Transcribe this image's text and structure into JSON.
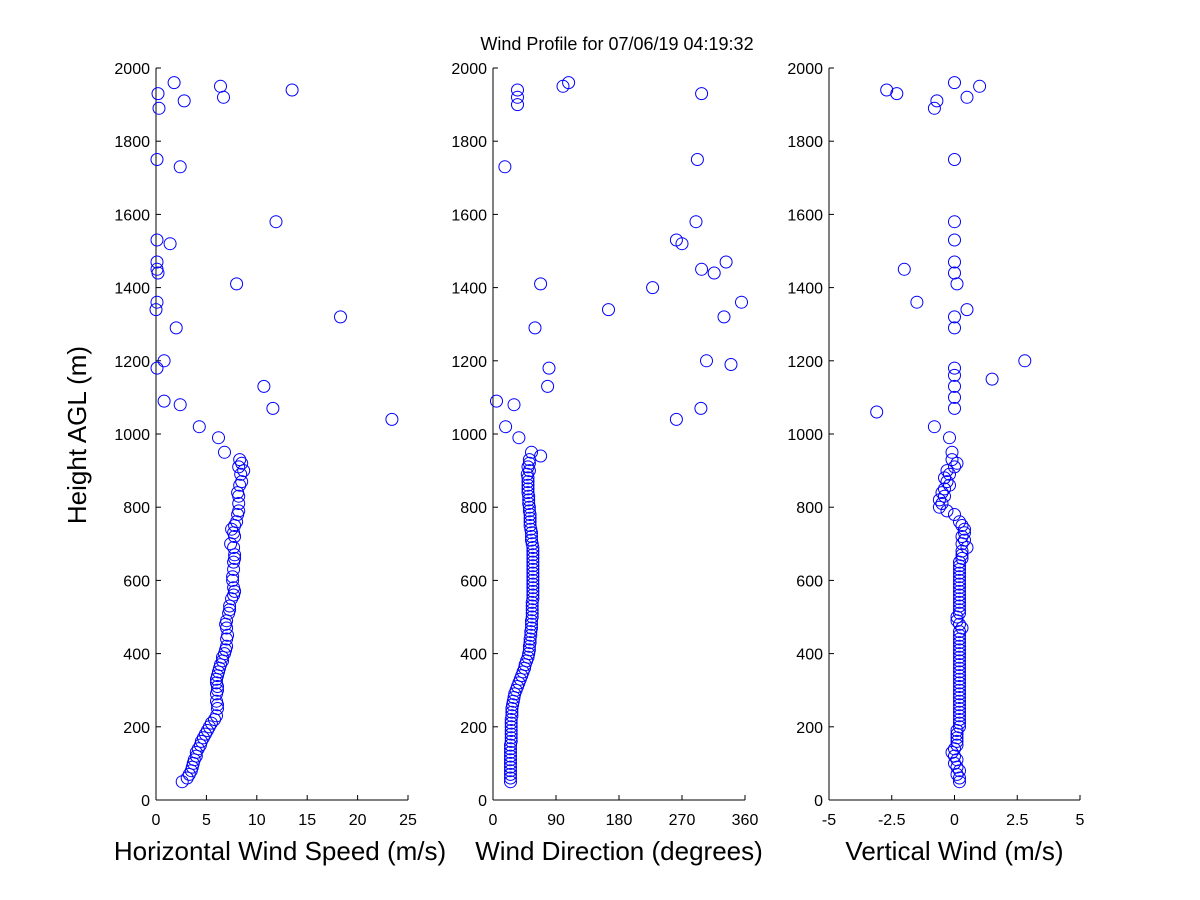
{
  "figure": {
    "title": "Wind Profile for  07/06/19 04:19:32",
    "ylabel": "Height AGL (m)"
  },
  "chart_data": [
    {
      "type": "scatter",
      "id": "speed",
      "xlabel": "Horizontal Wind Speed (m/s)",
      "ylabel": "Height AGL (m)",
      "xlim": [
        0,
        25
      ],
      "ylim": [
        0,
        2000
      ],
      "xticks": [
        "0",
        "5",
        "10",
        "15",
        "20",
        "25"
      ],
      "yticks": [
        "0",
        "200",
        "400",
        "600",
        "800",
        "1000",
        "1200",
        "1400",
        "1600",
        "1800",
        "2000"
      ],
      "marker_color": "#0000ff",
      "points": [
        [
          1.8,
          1960
        ],
        [
          0.2,
          1930
        ],
        [
          0.3,
          1890
        ],
        [
          2.8,
          1910
        ],
        [
          6.4,
          1950
        ],
        [
          6.7,
          1920
        ],
        [
          13.5,
          1940
        ],
        [
          0.1,
          1750
        ],
        [
          2.4,
          1730
        ],
        [
          11.9,
          1580
        ],
        [
          0.1,
          1530
        ],
        [
          1.4,
          1520
        ],
        [
          0.1,
          1470
        ],
        [
          0.1,
          1450
        ],
        [
          0.2,
          1440
        ],
        [
          8.0,
          1410
        ],
        [
          0.1,
          1360
        ],
        [
          0.0,
          1340
        ],
        [
          18.3,
          1320
        ],
        [
          2.0,
          1290
        ],
        [
          0.8,
          1200
        ],
        [
          0.1,
          1180
        ],
        [
          10.7,
          1130
        ],
        [
          0.8,
          1090
        ],
        [
          2.4,
          1080
        ],
        [
          11.6,
          1070
        ],
        [
          23.4,
          1040
        ],
        [
          4.3,
          1020
        ],
        [
          6.2,
          990
        ],
        [
          6.8,
          950
        ],
        [
          8.3,
          930
        ],
        [
          8.5,
          920
        ],
        [
          8.2,
          910
        ],
        [
          8.7,
          900
        ],
        [
          8.4,
          890
        ],
        [
          8.5,
          870
        ],
        [
          8.3,
          860
        ],
        [
          8.1,
          840
        ],
        [
          8.2,
          830
        ],
        [
          8.2,
          810
        ],
        [
          8.2,
          790
        ],
        [
          8.1,
          780
        ],
        [
          8.0,
          760
        ],
        [
          7.8,
          750
        ],
        [
          7.5,
          740
        ],
        [
          7.7,
          730
        ],
        [
          7.8,
          720
        ],
        [
          7.4,
          700
        ],
        [
          7.7,
          690
        ],
        [
          7.8,
          670
        ],
        [
          7.8,
          660
        ],
        [
          7.7,
          650
        ],
        [
          7.7,
          630
        ],
        [
          7.6,
          610
        ],
        [
          7.6,
          600
        ],
        [
          7.7,
          580
        ],
        [
          7.8,
          570
        ],
        [
          7.7,
          560
        ],
        [
          7.5,
          550
        ],
        [
          7.3,
          530
        ],
        [
          7.3,
          520
        ],
        [
          7.2,
          510
        ],
        [
          7.0,
          490
        ],
        [
          6.9,
          480
        ],
        [
          7.0,
          470
        ],
        [
          7.1,
          450
        ],
        [
          7.0,
          440
        ],
        [
          7.0,
          420
        ],
        [
          6.9,
          410
        ],
        [
          6.8,
          400
        ],
        [
          6.6,
          390
        ],
        [
          6.6,
          380
        ],
        [
          6.4,
          370
        ],
        [
          6.3,
          360
        ],
        [
          6.2,
          350
        ],
        [
          6.1,
          340
        ],
        [
          6.0,
          330
        ],
        [
          6.0,
          320
        ],
        [
          6.1,
          310
        ],
        [
          6.1,
          300
        ],
        [
          6.0,
          290
        ],
        [
          6.0,
          270
        ],
        [
          6.1,
          260
        ],
        [
          6.1,
          250
        ],
        [
          6.0,
          230
        ],
        [
          5.8,
          220
        ],
        [
          5.5,
          210
        ],
        [
          5.3,
          200
        ],
        [
          5.1,
          190
        ],
        [
          4.9,
          180
        ],
        [
          4.7,
          170
        ],
        [
          4.5,
          160
        ],
        [
          4.4,
          150
        ],
        [
          4.2,
          140
        ],
        [
          4.0,
          130
        ],
        [
          4.0,
          120
        ],
        [
          3.8,
          110
        ],
        [
          3.7,
          100
        ],
        [
          3.6,
          90
        ],
        [
          3.5,
          80
        ],
        [
          3.3,
          70
        ],
        [
          3.1,
          60
        ],
        [
          2.6,
          50
        ]
      ]
    },
    {
      "type": "scatter",
      "id": "direction",
      "xlabel": "Wind Direction (degrees)",
      "xlim": [
        0,
        360
      ],
      "ylim": [
        0,
        2000
      ],
      "xticks": [
        "0",
        "90",
        "180",
        "270",
        "360"
      ],
      "yticks": [
        "0",
        "200",
        "400",
        "600",
        "800",
        "1000",
        "1200",
        "1400",
        "1600",
        "1800",
        "2000"
      ],
      "marker_color": "#0000ff",
      "points": [
        [
          35,
          1940
        ],
        [
          35,
          1920
        ],
        [
          35,
          1900
        ],
        [
          100,
          1950
        ],
        [
          108,
          1960
        ],
        [
          298,
          1930
        ],
        [
          292,
          1750
        ],
        [
          17,
          1730
        ],
        [
          290,
          1580
        ],
        [
          262,
          1530
        ],
        [
          270,
          1520
        ],
        [
          333,
          1470
        ],
        [
          298,
          1450
        ],
        [
          316,
          1440
        ],
        [
          68,
          1410
        ],
        [
          228,
          1400
        ],
        [
          355,
          1360
        ],
        [
          165,
          1340
        ],
        [
          330,
          1320
        ],
        [
          60,
          1290
        ],
        [
          305,
          1200
        ],
        [
          340,
          1190
        ],
        [
          80,
          1180
        ],
        [
          78,
          1130
        ],
        [
          5,
          1090
        ],
        [
          30,
          1080
        ],
        [
          297,
          1070
        ],
        [
          262,
          1040
        ],
        [
          18,
          1020
        ],
        [
          37,
          990
        ],
        [
          55,
          950
        ],
        [
          68,
          940
        ],
        [
          52,
          930
        ],
        [
          52,
          920
        ],
        [
          50,
          910
        ],
        [
          52,
          900
        ],
        [
          49,
          890
        ],
        [
          50,
          880
        ],
        [
          50,
          870
        ],
        [
          50,
          860
        ],
        [
          50,
          850
        ],
        [
          50,
          840
        ],
        [
          51,
          830
        ],
        [
          51,
          820
        ],
        [
          51,
          810
        ],
        [
          52,
          800
        ],
        [
          52,
          790
        ],
        [
          53,
          780
        ],
        [
          53,
          770
        ],
        [
          53,
          760
        ],
        [
          53,
          750
        ],
        [
          54,
          740
        ],
        [
          55,
          730
        ],
        [
          55,
          720
        ],
        [
          55,
          710
        ],
        [
          56,
          700
        ],
        [
          57,
          690
        ],
        [
          57,
          680
        ],
        [
          57,
          670
        ],
        [
          57,
          660
        ],
        [
          57,
          650
        ],
        [
          57,
          640
        ],
        [
          57,
          630
        ],
        [
          57,
          620
        ],
        [
          57,
          610
        ],
        [
          57,
          600
        ],
        [
          57,
          590
        ],
        [
          57,
          580
        ],
        [
          57,
          570
        ],
        [
          57,
          560
        ],
        [
          57,
          550
        ],
        [
          56,
          540
        ],
        [
          56,
          530
        ],
        [
          56,
          520
        ],
        [
          56,
          510
        ],
        [
          56,
          500
        ],
        [
          55,
          490
        ],
        [
          55,
          480
        ],
        [
          55,
          470
        ],
        [
          54,
          460
        ],
        [
          54,
          450
        ],
        [
          53,
          440
        ],
        [
          53,
          430
        ],
        [
          52,
          420
        ],
        [
          52,
          410
        ],
        [
          51,
          400
        ],
        [
          50,
          390
        ],
        [
          48,
          380
        ],
        [
          46,
          370
        ],
        [
          45,
          360
        ],
        [
          43,
          350
        ],
        [
          41,
          340
        ],
        [
          39,
          330
        ],
        [
          37,
          320
        ],
        [
          35,
          310
        ],
        [
          33,
          300
        ],
        [
          31,
          290
        ],
        [
          30,
          280
        ],
        [
          29,
          270
        ],
        [
          28,
          260
        ],
        [
          27,
          250
        ],
        [
          27,
          240
        ],
        [
          27,
          230
        ],
        [
          26,
          220
        ],
        [
          26,
          210
        ],
        [
          26,
          200
        ],
        [
          26,
          190
        ],
        [
          26,
          180
        ],
        [
          26,
          170
        ],
        [
          26,
          160
        ],
        [
          25,
          150
        ],
        [
          25,
          140
        ],
        [
          25,
          130
        ],
        [
          25,
          120
        ],
        [
          25,
          110
        ],
        [
          25,
          100
        ],
        [
          25,
          90
        ],
        [
          25,
          80
        ],
        [
          25,
          70
        ],
        [
          25,
          60
        ],
        [
          25,
          50
        ]
      ]
    },
    {
      "type": "scatter",
      "id": "vertical",
      "xlabel": "Vertical Wind (m/s)",
      "xlim": [
        -5,
        5
      ],
      "ylim": [
        0,
        2000
      ],
      "xticks": [
        "-5",
        "-2.5",
        "0",
        "2.5",
        "5"
      ],
      "yticks": [
        "0",
        "200",
        "400",
        "600",
        "800",
        "1000",
        "1200",
        "1400",
        "1600",
        "1800",
        "2000"
      ],
      "marker_color": "#0000ff",
      "points": [
        [
          -2.7,
          1940
        ],
        [
          -2.3,
          1930
        ],
        [
          -0.7,
          1910
        ],
        [
          -0.8,
          1890
        ],
        [
          0.0,
          1960
        ],
        [
          1.0,
          1950
        ],
        [
          0.5,
          1920
        ],
        [
          0.0,
          1750
        ],
        [
          0.0,
          1580
        ],
        [
          0.0,
          1530
        ],
        [
          0.0,
          1470
        ],
        [
          -2.0,
          1450
        ],
        [
          0.0,
          1440
        ],
        [
          0.1,
          1410
        ],
        [
          -1.5,
          1360
        ],
        [
          0.5,
          1340
        ],
        [
          0.0,
          1320
        ],
        [
          0.0,
          1290
        ],
        [
          2.8,
          1200
        ],
        [
          0.0,
          1180
        ],
        [
          0.0,
          1160
        ],
        [
          1.5,
          1150
        ],
        [
          0.0,
          1130
        ],
        [
          0.0,
          1100
        ],
        [
          0.0,
          1070
        ],
        [
          -3.1,
          1060
        ],
        [
          -0.8,
          1020
        ],
        [
          -0.2,
          990
        ],
        [
          -0.1,
          950
        ],
        [
          -0.1,
          930
        ],
        [
          0.1,
          920
        ],
        [
          0.0,
          910
        ],
        [
          -0.3,
          900
        ],
        [
          -0.2,
          890
        ],
        [
          -0.4,
          880
        ],
        [
          -0.3,
          870
        ],
        [
          -0.2,
          860
        ],
        [
          -0.4,
          850
        ],
        [
          -0.5,
          840
        ],
        [
          -0.4,
          830
        ],
        [
          -0.6,
          820
        ],
        [
          -0.5,
          810
        ],
        [
          -0.6,
          800
        ],
        [
          -0.3,
          790
        ],
        [
          0.0,
          780
        ],
        [
          0.2,
          760
        ],
        [
          0.3,
          750
        ],
        [
          0.4,
          740
        ],
        [
          0.4,
          730
        ],
        [
          0.3,
          720
        ],
        [
          0.4,
          710
        ],
        [
          0.3,
          700
        ],
        [
          0.5,
          690
        ],
        [
          0.3,
          680
        ],
        [
          0.3,
          670
        ],
        [
          0.3,
          660
        ],
        [
          0.2,
          650
        ],
        [
          0.2,
          640
        ],
        [
          0.2,
          630
        ],
        [
          0.2,
          620
        ],
        [
          0.2,
          610
        ],
        [
          0.2,
          600
        ],
        [
          0.2,
          590
        ],
        [
          0.2,
          580
        ],
        [
          0.2,
          570
        ],
        [
          0.2,
          560
        ],
        [
          0.2,
          550
        ],
        [
          0.2,
          540
        ],
        [
          0.2,
          530
        ],
        [
          0.2,
          520
        ],
        [
          0.2,
          510
        ],
        [
          0.1,
          500
        ],
        [
          0.1,
          490
        ],
        [
          0.2,
          480
        ],
        [
          0.3,
          470
        ],
        [
          0.2,
          460
        ],
        [
          0.2,
          450
        ],
        [
          0.2,
          440
        ],
        [
          0.2,
          430
        ],
        [
          0.2,
          420
        ],
        [
          0.2,
          410
        ],
        [
          0.2,
          400
        ],
        [
          0.2,
          390
        ],
        [
          0.2,
          380
        ],
        [
          0.2,
          370
        ],
        [
          0.2,
          360
        ],
        [
          0.2,
          350
        ],
        [
          0.2,
          340
        ],
        [
          0.2,
          330
        ],
        [
          0.2,
          320
        ],
        [
          0.2,
          310
        ],
        [
          0.2,
          300
        ],
        [
          0.2,
          290
        ],
        [
          0.2,
          280
        ],
        [
          0.2,
          270
        ],
        [
          0.2,
          260
        ],
        [
          0.2,
          250
        ],
        [
          0.2,
          240
        ],
        [
          0.2,
          230
        ],
        [
          0.2,
          220
        ],
        [
          0.2,
          210
        ],
        [
          0.2,
          200
        ],
        [
          0.1,
          190
        ],
        [
          0.1,
          180
        ],
        [
          0.1,
          170
        ],
        [
          0.1,
          160
        ],
        [
          0.1,
          150
        ],
        [
          0.0,
          140
        ],
        [
          -0.1,
          130
        ],
        [
          0.0,
          120
        ],
        [
          0.1,
          110
        ],
        [
          0.0,
          100
        ],
        [
          0.1,
          90
        ],
        [
          0.2,
          80
        ],
        [
          0.1,
          70
        ],
        [
          0.2,
          60
        ],
        [
          0.2,
          50
        ]
      ]
    }
  ]
}
